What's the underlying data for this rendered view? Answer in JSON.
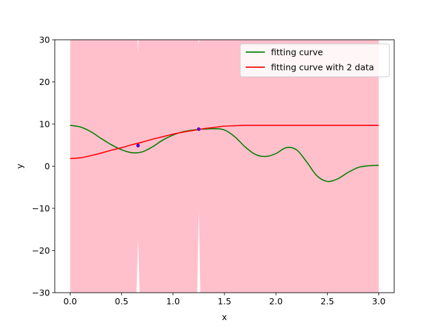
{
  "chart_data": {
    "type": "line",
    "title": "",
    "xlabel": "x",
    "ylabel": "y",
    "xlim": [
      -0.15,
      3.15
    ],
    "ylim": [
      -30,
      30
    ],
    "xticks": [
      0.0,
      0.5,
      1.0,
      1.5,
      2.0,
      2.5,
      3.0
    ],
    "xtick_labels": [
      "0.0",
      "0.5",
      "1.0",
      "1.5",
      "2.0",
      "2.5",
      "3.0"
    ],
    "yticks": [
      -30,
      -20,
      -10,
      0,
      10,
      20,
      30
    ],
    "ytick_labels": [
      "−30",
      "−20",
      "−10",
      "0",
      "10",
      "20",
      "30"
    ],
    "grid": false,
    "legend_position": "top-right",
    "confidence_band": {
      "color": "#ffc0cb",
      "x_range": [
        0.0,
        3.0
      ],
      "gaps": [
        {
          "x": 0.66,
          "half_width": 0.015,
          "upper": -17,
          "lower": -30
        },
        {
          "x": 1.25,
          "half_width": 0.015,
          "upper": -10,
          "lower": -30
        },
        {
          "x": 0.66,
          "half_width": 0.004,
          "upper": 30,
          "lower": 27
        },
        {
          "x": 1.25,
          "half_width": 0.004,
          "upper": 30,
          "lower": 29
        }
      ]
    },
    "series": [
      {
        "name": "fitting curve",
        "color": "#007f00",
        "x": [
          0.0,
          0.1,
          0.2,
          0.3,
          0.4,
          0.5,
          0.6,
          0.7,
          0.8,
          0.9,
          1.0,
          1.1,
          1.2,
          1.3,
          1.4,
          1.5,
          1.6,
          1.7,
          1.8,
          1.9,
          2.0,
          2.1,
          2.2,
          2.3,
          2.4,
          2.5,
          2.6,
          2.7,
          2.8,
          2.9,
          3.0
        ],
        "y": [
          9.7,
          9.3,
          8.2,
          6.6,
          5.1,
          3.9,
          3.2,
          3.4,
          4.6,
          6.2,
          7.4,
          8.2,
          8.6,
          8.8,
          8.9,
          8.6,
          7.0,
          4.6,
          2.8,
          2.3,
          3.0,
          4.4,
          3.9,
          1.0,
          -2.3,
          -3.6,
          -3.0,
          -1.5,
          -0.3,
          0.1,
          0.2
        ]
      },
      {
        "name": "fitting curve with 2 data",
        "color": "#ff0000",
        "x": [
          0.0,
          0.1,
          0.2,
          0.3,
          0.4,
          0.5,
          0.6,
          0.7,
          0.8,
          0.9,
          1.0,
          1.1,
          1.2,
          1.3,
          1.4,
          1.5,
          1.6,
          1.7,
          1.8,
          1.9,
          2.0,
          2.2,
          2.4,
          2.6,
          2.8,
          3.0
        ],
        "y": [
          1.8,
          2.0,
          2.5,
          3.1,
          3.8,
          4.4,
          5.1,
          5.7,
          6.4,
          7.0,
          7.6,
          8.1,
          8.5,
          8.9,
          9.2,
          9.5,
          9.6,
          9.7,
          9.7,
          9.7,
          9.7,
          9.7,
          9.7,
          9.7,
          9.7,
          9.7
        ]
      }
    ],
    "points": [
      {
        "x": 0.66,
        "y": 4.9,
        "color": "#5b00c8"
      },
      {
        "x": 1.25,
        "y": 8.8,
        "color": "#5b00c8"
      }
    ]
  }
}
